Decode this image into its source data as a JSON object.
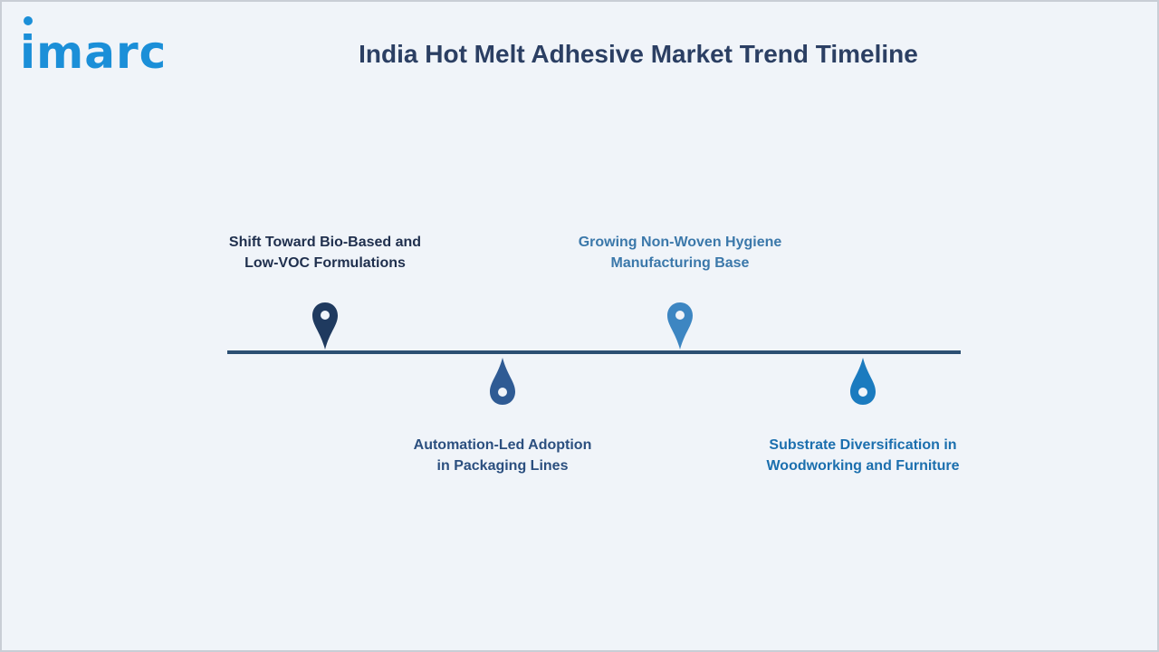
{
  "logo": {
    "text": "imarc"
  },
  "title": "India Hot Melt Adhesive Market Trend Timeline",
  "timeline": {
    "line_color": "#2c4f73",
    "items": [
      {
        "line1": "Shift Toward Bio-Based and",
        "line2": "Low-VOC Formulations",
        "color": "#1f3a5f",
        "text_color": "#1f2f4d",
        "position": "above",
        "icon": "map-pin-icon"
      },
      {
        "line1": "Automation-Led Adoption",
        "line2": "in Packaging Lines",
        "color": "#2f5b94",
        "text_color": "#2b4f7f",
        "position": "below",
        "icon": "drop-icon"
      },
      {
        "line1": "Growing Non-Woven Hygiene",
        "line2": "Manufacturing Base",
        "color": "#3d86c2",
        "text_color": "#3b78aa",
        "position": "above",
        "icon": "map-pin-icon"
      },
      {
        "line1": "Substrate Diversification in",
        "line2": "Woodworking and Furniture",
        "color": "#1b7bbf",
        "text_color": "#1b6fae",
        "position": "below",
        "icon": "drop-icon"
      }
    ]
  }
}
